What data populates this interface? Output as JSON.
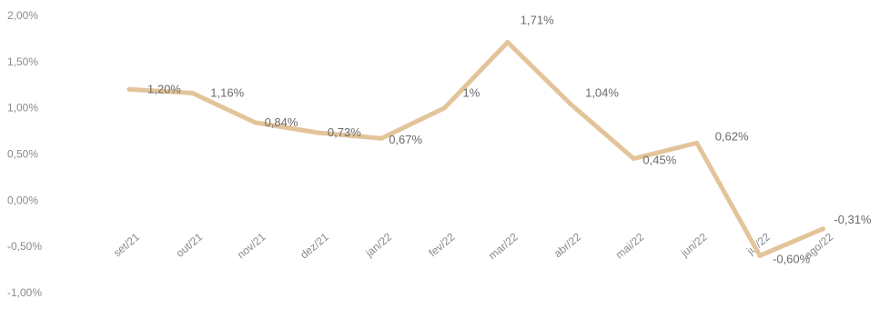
{
  "chart_data": {
    "type": "line",
    "title": "",
    "xlabel": "",
    "ylabel": "",
    "categories": [
      "set/21",
      "out/21",
      "nov/21",
      "dez/21",
      "jan/22",
      "fev/22",
      "mar/22",
      "abr/22",
      "mai/22",
      "jun/22",
      "jul/22",
      "ago/22"
    ],
    "series": [
      {
        "values": [
          1.2,
          1.16,
          0.84,
          0.73,
          0.67,
          1.0,
          1.71,
          1.04,
          0.45,
          0.62,
          -0.6,
          -0.31
        ],
        "data_labels": [
          "1,20%",
          "1,16%",
          "0,84%",
          "0,73%",
          "0,67%",
          "1%",
          "1,71%",
          "1,04%",
          "0,45%",
          "0,62%",
          "-0,60%",
          "-0,31%"
        ],
        "color": "#e3c49a"
      }
    ],
    "y_ticks": [
      "2,00%",
      "1,50%",
      "1,00%",
      "0,50%",
      "0,00%",
      "-0,50%",
      "-1,00%"
    ],
    "ylim": [
      -1.0,
      2.0
    ],
    "grid": false,
    "legend": "none"
  }
}
